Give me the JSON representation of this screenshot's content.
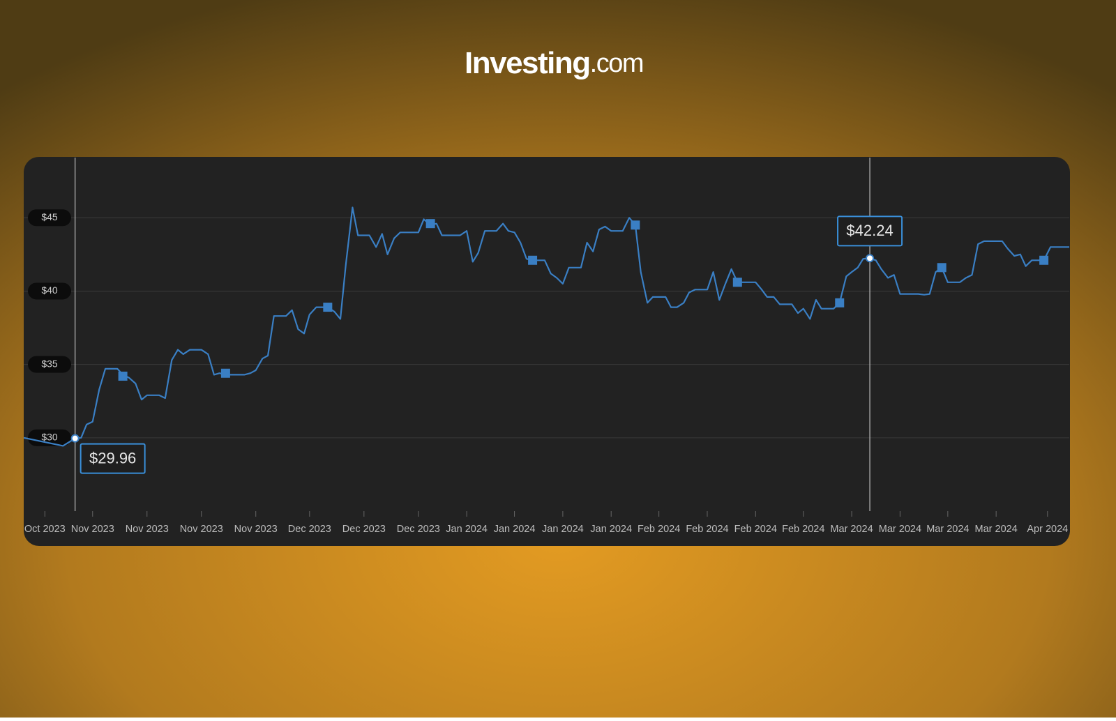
{
  "brand": "Investing",
  "brand_suffix": ".com",
  "chart_data": {
    "type": "line",
    "xlim": [
      0,
      173
    ],
    "ylim": [
      25,
      49.1
    ],
    "yticks": [
      {
        "value": 30,
        "label": "$30"
      },
      {
        "value": 35,
        "label": "$35"
      },
      {
        "value": 40,
        "label": "$40"
      },
      {
        "value": 45,
        "label": "$45"
      }
    ],
    "xticks": [
      {
        "value": 3.5,
        "label": "Oct 2023"
      },
      {
        "value": 11.4,
        "label": "Nov 2023"
      },
      {
        "value": 20.4,
        "label": "Nov 2023"
      },
      {
        "value": 29.4,
        "label": "Nov 2023"
      },
      {
        "value": 38.4,
        "label": "Nov 2023"
      },
      {
        "value": 47.3,
        "label": "Dec 2023"
      },
      {
        "value": 56.3,
        "label": "Dec 2023"
      },
      {
        "value": 65.3,
        "label": "Dec 2023"
      },
      {
        "value": 73.3,
        "label": "Jan 2024"
      },
      {
        "value": 81.2,
        "label": "Jan 2024"
      },
      {
        "value": 89.2,
        "label": "Jan 2024"
      },
      {
        "value": 97.2,
        "label": "Jan 2024"
      },
      {
        "value": 105.1,
        "label": "Feb 2024"
      },
      {
        "value": 113.1,
        "label": "Feb 2024"
      },
      {
        "value": 121.1,
        "label": "Feb 2024"
      },
      {
        "value": 129.0,
        "label": "Feb 2024"
      },
      {
        "value": 137.0,
        "label": "Mar 2024"
      },
      {
        "value": 145.0,
        "label": "Mar 2024"
      },
      {
        "value": 152.9,
        "label": "Mar 2024"
      },
      {
        "value": 160.9,
        "label": "Mar 2024"
      },
      {
        "value": 169.4,
        "label": "Apr 2024"
      }
    ],
    "grid": true,
    "series": [
      {
        "color": "#3a7fc4",
        "x": [
          0,
          6.5,
          8.5,
          9.5,
          10.4,
          11.4,
          12.5,
          13.5,
          15.5,
          16.4,
          17.4,
          18.5,
          19.5,
          20.4,
          22.4,
          23.4,
          24.5,
          25.5,
          26.4,
          27.5,
          29.4,
          30.5,
          31.5,
          32.4,
          33.5,
          36.5,
          37.5,
          38.4,
          39.5,
          40.4,
          41.4,
          43.4,
          44.4,
          45.4,
          46.4,
          47.3,
          48.4,
          50.3,
          51.4,
          52.4,
          53.3,
          54.4,
          55.3,
          57.2,
          58.3,
          59.3,
          60.2,
          61.3,
          62.3,
          65.3,
          66.2,
          67.3,
          68.3,
          69.2,
          72.2,
          73.3,
          74.3,
          75.2,
          76.3,
          78.2,
          79.3,
          80.2,
          81.2,
          82.2,
          83.2,
          84.2,
          86.2,
          87.2,
          88.2,
          89.2,
          90.2,
          92.2,
          93.2,
          94.2,
          95.2,
          96.2,
          97.2,
          99.1,
          100.2,
          101.2,
          102.1,
          103.2,
          104.1,
          106.2,
          107.1,
          108.1,
          109.2,
          110.1,
          111.1,
          113.1,
          114.1,
          115.1,
          116.1,
          117.1,
          118.1,
          119.1,
          121.1,
          122.1,
          123.0,
          124.1,
          125.1,
          127.1,
          128.1,
          129.0,
          130.1,
          131.1,
          132.0,
          134.0,
          135.0,
          136.1,
          137.0,
          138.0,
          138.9,
          140.0,
          141.0,
          141.9,
          143.0,
          144.0,
          145.0,
          148.0,
          149.0,
          149.9,
          150.9,
          151.9,
          152.9,
          154.9,
          155.9,
          156.9,
          157.9,
          158.9,
          161.9,
          162.8,
          163.9,
          164.9,
          165.8,
          166.8,
          168.8,
          169.9,
          173.0
        ],
        "values": [
          30.0,
          29.45,
          29.96,
          30.0,
          30.9,
          31.1,
          33.3,
          34.7,
          34.7,
          34.3,
          34.1,
          33.7,
          32.6,
          32.9,
          32.9,
          32.7,
          35.3,
          36.0,
          35.7,
          36.0,
          36.0,
          35.7,
          34.3,
          34.4,
          34.3,
          34.3,
          34.4,
          34.6,
          35.4,
          35.6,
          38.3,
          38.3,
          38.7,
          37.4,
          37.1,
          38.4,
          38.9,
          38.9,
          38.6,
          38.1,
          41.8,
          45.7,
          43.8,
          43.8,
          43.0,
          43.9,
          42.5,
          43.6,
          44.0,
          44.0,
          44.9,
          44.5,
          44.6,
          43.8,
          43.8,
          44.1,
          42.0,
          42.6,
          44.1,
          44.1,
          44.6,
          44.1,
          44.0,
          43.3,
          42.2,
          42.1,
          42.1,
          41.2,
          40.9,
          40.5,
          41.6,
          41.6,
          43.3,
          42.7,
          44.2,
          44.4,
          44.1,
          44.1,
          45.0,
          44.5,
          41.3,
          39.2,
          39.6,
          39.6,
          38.9,
          38.9,
          39.2,
          39.9,
          40.1,
          40.1,
          41.3,
          39.4,
          40.5,
          41.5,
          40.6,
          40.6,
          40.6,
          40.1,
          39.6,
          39.6,
          39.1,
          39.1,
          38.5,
          38.8,
          38.1,
          39.4,
          38.8,
          38.8,
          39.2,
          41.0,
          41.3,
          41.6,
          42.2,
          42.24,
          42.1,
          41.5,
          40.9,
          41.1,
          39.8,
          39.8,
          39.75,
          39.8,
          41.3,
          41.6,
          40.6,
          40.6,
          40.9,
          41.1,
          43.2,
          43.4,
          43.4,
          42.9,
          42.4,
          42.5,
          41.7,
          42.1,
          42.1,
          43.0,
          43.0
        ]
      }
    ],
    "markers": {
      "color": "#3a7fc4",
      "x": [
        16.4,
        33.4,
        50.3,
        67.3,
        84.2,
        101.2,
        118.1,
        135.0,
        151.9,
        168.8
      ],
      "values": [
        34.2,
        34.4,
        38.9,
        44.6,
        42.1,
        44.5,
        40.6,
        39.2,
        41.6,
        42.1
      ]
    },
    "annotations": [
      {
        "x": 8.5,
        "value": 29.96,
        "label": "$29.96"
      },
      {
        "x": 140.0,
        "value": 42.24,
        "label": "$42.24"
      }
    ]
  }
}
